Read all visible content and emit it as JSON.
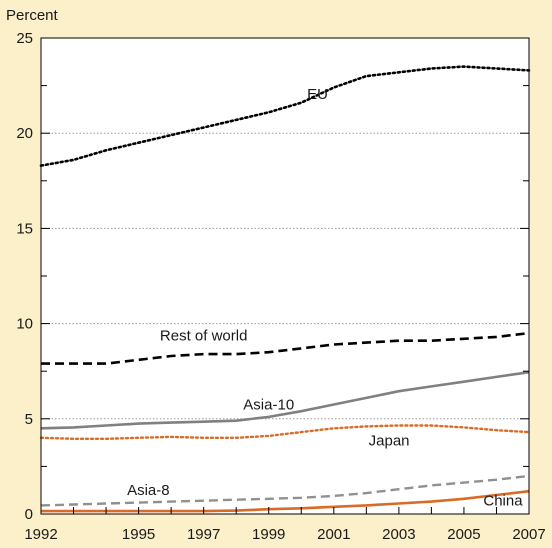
{
  "chart_data": {
    "type": "line",
    "ylabel": "Percent",
    "ylim": [
      0,
      25
    ],
    "yticks": [
      0,
      5,
      10,
      15,
      20,
      25
    ],
    "xlim": [
      1992,
      2007
    ],
    "xticks": [
      1992,
      1995,
      1997,
      1999,
      2001,
      2003,
      2005,
      2007
    ],
    "grid": "horizontal dotted",
    "x": [
      1992,
      1993,
      1994,
      1995,
      1996,
      1997,
      1998,
      1999,
      2000,
      2001,
      2002,
      2003,
      2004,
      2005,
      2006,
      2007
    ],
    "series": [
      {
        "name": "EU",
        "style": "dotted",
        "color": "#000000",
        "values": [
          18.3,
          18.6,
          19.1,
          19.5,
          19.9,
          20.3,
          20.7,
          21.1,
          21.6,
          22.4,
          23.0,
          23.2,
          23.4,
          23.5,
          23.4,
          23.3
        ]
      },
      {
        "name": "Rest of world",
        "style": "dashed",
        "color": "#000000",
        "values": [
          7.9,
          7.9,
          7.9,
          8.1,
          8.3,
          8.4,
          8.4,
          8.5,
          8.7,
          8.9,
          9.0,
          9.1,
          9.1,
          9.2,
          9.3,
          9.5
        ]
      },
      {
        "name": "Asia-10",
        "style": "solid",
        "color": "#808080",
        "values": [
          4.5,
          4.55,
          4.65,
          4.75,
          4.8,
          4.85,
          4.9,
          5.1,
          5.4,
          5.75,
          6.1,
          6.45,
          6.7,
          6.95,
          7.2,
          7.45
        ]
      },
      {
        "name": "Japan",
        "style": "dotted",
        "color": "#D96B24",
        "values": [
          4.0,
          3.95,
          3.95,
          4.0,
          4.05,
          4.0,
          4.0,
          4.1,
          4.3,
          4.5,
          4.6,
          4.65,
          4.65,
          4.55,
          4.4,
          4.3
        ]
      },
      {
        "name": "Asia-8",
        "style": "dashed",
        "color": "#909090",
        "values": [
          0.45,
          0.5,
          0.55,
          0.6,
          0.65,
          0.7,
          0.75,
          0.8,
          0.85,
          0.95,
          1.1,
          1.3,
          1.5,
          1.65,
          1.8,
          2.0
        ]
      },
      {
        "name": "China",
        "style": "solid",
        "color": "#D96B24",
        "values": [
          0.15,
          0.15,
          0.15,
          0.15,
          0.15,
          0.15,
          0.18,
          0.25,
          0.3,
          0.38,
          0.45,
          0.55,
          0.65,
          0.8,
          1.0,
          1.2
        ]
      }
    ]
  }
}
